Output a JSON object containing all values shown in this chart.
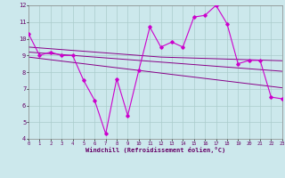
{
  "xlabel": "Windchill (Refroidissement éolien,°C)",
  "xlim": [
    0,
    23
  ],
  "ylim": [
    4,
    12
  ],
  "yticks": [
    4,
    5,
    6,
    7,
    8,
    9,
    10,
    11,
    12
  ],
  "xticks": [
    0,
    1,
    2,
    3,
    4,
    5,
    6,
    7,
    8,
    9,
    10,
    11,
    12,
    13,
    14,
    15,
    16,
    17,
    18,
    19,
    20,
    21,
    22,
    23
  ],
  "bg_color": "#cce8ec",
  "grid_color": "#aacccc",
  "line_color_dark": "#880088",
  "line_color_main": "#cc00cc",
  "windchill": [
    10.3,
    9.0,
    9.2,
    9.0,
    9.0,
    7.5,
    6.3,
    4.3,
    7.6,
    5.4,
    8.1,
    10.7,
    9.5,
    9.8,
    9.5,
    11.3,
    11.4,
    12.0,
    10.9,
    8.5,
    8.7,
    8.7,
    6.5,
    6.4
  ],
  "trend1": [
    9.5,
    9.45,
    9.4,
    9.35,
    9.3,
    9.25,
    9.2,
    9.15,
    9.1,
    9.05,
    9.0,
    8.95,
    8.9,
    8.88,
    8.86,
    8.84,
    8.82,
    8.8,
    8.78,
    8.76,
    8.74,
    8.72,
    8.7,
    8.68
  ],
  "trend2": [
    9.2,
    9.15,
    9.1,
    9.05,
    9.0,
    8.95,
    8.9,
    8.85,
    8.8,
    8.75,
    8.7,
    8.65,
    8.6,
    8.55,
    8.5,
    8.45,
    8.4,
    8.35,
    8.3,
    8.25,
    8.2,
    8.15,
    8.1,
    8.05
  ],
  "trend3": [
    8.9,
    8.82,
    8.74,
    8.66,
    8.58,
    8.5,
    8.42,
    8.34,
    8.26,
    8.18,
    8.1,
    8.02,
    7.94,
    7.86,
    7.78,
    7.7,
    7.62,
    7.54,
    7.46,
    7.38,
    7.3,
    7.22,
    7.14,
    7.06
  ]
}
